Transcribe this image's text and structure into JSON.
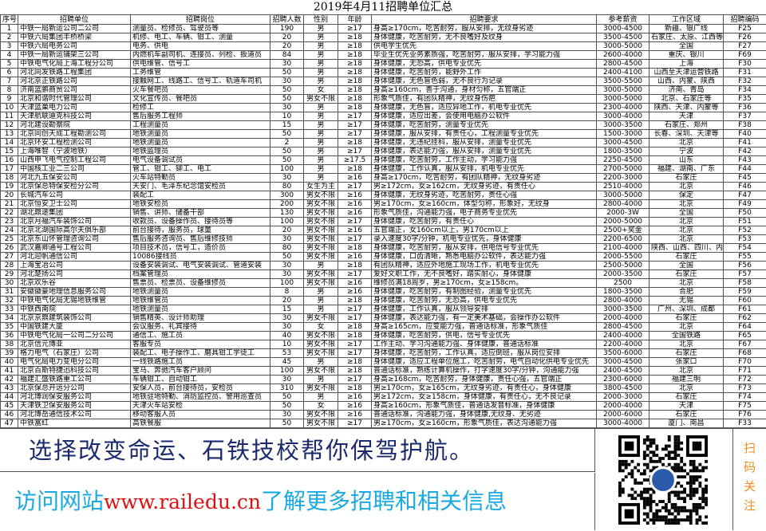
{
  "title": "2019年4月11招聘单位汇总",
  "columns": [
    "序号",
    "招聘单位",
    "招聘岗位",
    "招聘人数",
    "性别",
    "年龄",
    "招聘要求",
    "参考薪资",
    "工作区域",
    "招聘编码"
  ],
  "rows": [
    [
      "1",
      "中铁一局新运公司二公司",
      "测量员、检修员、驾驶员等",
      "190",
      "男",
      "≥17",
      "身高≥170cm，吃苦耐劳，服从安排，无纹身劣迹",
      "3000-4500",
      "新疆、银广线",
      "F25"
    ],
    [
      "2",
      "中铁六局集团丰桥桥梁",
      "机修、电工、车辆、钳工、测量",
      "20",
      "男",
      "≥18",
      "身体健康，吃苦耐劳，无不良嗜好及纹身",
      "3500-4500",
      "石家庄、太原、江西等",
      "F26"
    ],
    [
      "3",
      "中铁六局电务公司",
      "电务、供电",
      "20",
      "男",
      "≥18",
      "供电学生优先",
      "3000-5000",
      "全国",
      "F27"
    ],
    [
      "4",
      "中铁一局新运铺架三公司",
      "内燃机车副司机、连接员、列检、扳道员",
      "84",
      "男",
      "≥18",
      "毕业生优先业务素质强，吃苦耐劳，服从安排，学习能力强",
      "2600-4000",
      "重庆、银川",
      "F69"
    ],
    [
      "5",
      "中铁电气化局上海工程分公司",
      "供电维管、信号工",
      "30",
      "男",
      "≥18",
      "身体健康，无恐高，供电专业优先",
      "2800-4500",
      "上海",
      "F30"
    ],
    [
      "6",
      "河北同发铁路工程集团",
      "工务维管",
      "50",
      "男",
      "≥18",
      "身体健康，吃苦耐劳，能野外工作",
      "2400-4100",
      "山西至天津运营铁路",
      "F31"
    ],
    [
      "7",
      "河北京正铁路公司",
      "接触网工、线路工、信号工、轨道车司机",
      "30",
      "男",
      "≥18",
      "身体健康，无色盲色弱，无不良行为记录",
      "3500-5500",
      "山西、内蒙、陕西",
      "F32"
    ],
    [
      "8",
      "济南蓝鹏商贸公司",
      "火车餐吧员",
      "50",
      "女",
      "≥18",
      "身高≥160cm，善于沟通，身材匀称，五官端正",
      "3000-5000",
      "济南、青岛",
      "F34"
    ],
    [
      "9",
      "北京和谐时代管理公司",
      "文化宣传员、餐吧员",
      "50",
      "男女不限",
      "≥18",
      "形象气质佳，有团队精神，无纹身伤疤",
      "3000-5000",
      "北京、石家庄等",
      "F35"
    ],
    [
      "10",
      "天津蓝巢电力公司",
      "检修工",
      "30",
      "男",
      "≥18",
      "身体健康，无色盲，适应异地工作，机电专业优先",
      "2300-4000",
      "陕西、天津、内蒙等",
      "F36"
    ],
    [
      "11",
      "天津航联迪克科技公司",
      "售后服务工程师",
      "10",
      "男",
      "≥17",
      "身体健康，适应出差，会使用电脑办公软件",
      "3000-4000",
      "天津",
      "F37"
    ],
    [
      "12",
      "河北建设勘察院",
      "工程测量员",
      "15",
      "男",
      "≥17",
      "身体健康，吃苦耐劳，测量专业优先",
      "3000-3500",
      "石家庄、郑州",
      "F38"
    ],
    [
      "13",
      "北京同创天成工程勘测公司",
      "地铁测量员",
      "50",
      "男",
      "≥17",
      "身体健康，服从安排，有责任心，工程测量专业优先",
      "1500-3000",
      "长春、深圳、天津等",
      "F40"
    ],
    [
      "14",
      "北京环安工程检测公司",
      "地铁测量员",
      "2",
      "男",
      "≥18",
      "身体健康，无违纪挂科，服从安排，测量专业优先",
      "3000-4500",
      "北京",
      "F41"
    ],
    [
      "15",
      "上海唯智（宁波地铁）",
      "地铁监理员",
      "50",
      "男",
      "≥17",
      "身体健康，表达能力强，服从安排，测量专业优先",
      "1800-3500",
      "宁波",
      "F42"
    ],
    [
      "16",
      "山西申飞电气控制工程公司",
      "电气设备调试员",
      "50",
      "男",
      "≥17.5",
      "身体健康，吃苦耐劳，工作主动，学习能力强",
      "2250-4500",
      "山东",
      "F43"
    ],
    [
      "17",
      "中国核工业二三公司",
      "管工、钳工、铆工、电工",
      "100",
      "男",
      "≥18",
      "身体健康，工作认真，服从安排，机电专业优先",
      "2700-5000",
      "福建、湖南、广东",
      "F44"
    ],
    [
      "18",
      "河北九五保安公司",
      "火车站特勤员",
      "30",
      "男",
      "≥16",
      "身高≥170cm，吃苦耐劳，有团队精神，无纹身劣迹",
      "2200-3000",
      "石家庄",
      "F45"
    ],
    [
      "19",
      "北京保总特保安检分公司",
      "天安门、毛泽东纪念馆安检员",
      "80",
      "女生为主",
      "≥17",
      "男≥172cm，女≥162cm，无纹身劣迹，有责任心",
      "2510-4000",
      "北京",
      "F46"
    ],
    [
      "20",
      "长城汽车公司",
      "装配工",
      "300",
      "男女不限",
      "≥16",
      "身体健康，无纹身劣迹，吃苦耐劳，责任心强",
      "3000-5000",
      "保定",
      "F47"
    ],
    [
      "21",
      "北京恒安卫士公司",
      "地铁安检员",
      "200",
      "男女不限",
      "≥16",
      "男≥170cm，女≥160cm，体型匀称，形象好，无纹身",
      "2800-4000",
      "北京",
      "F49"
    ],
    [
      "22",
      "湖北鼎途集团",
      "销售、讲师、储备干部",
      "130",
      "男女不限",
      "≥16",
      "形象气质佳，沟通能力强，电子商务专业优先",
      "2000-3W",
      "全国",
      "F50"
    ],
    [
      "23",
      "北京月福汽车装饰公司",
      "收款员、设备操作员、接待员等",
      "100",
      "男女不限",
      "≥17",
      "身体健康，吃苦耐劳，有责任心",
      "2000-5000",
      "北京",
      "F51"
    ],
    [
      "24",
      "北京北湖国际高尔夫俱乐部",
      "前台接待，服务员，球童",
      "20",
      "男女不限",
      "≥16",
      "五官端正，女160cm以上，男170cm以上",
      "2500+奖金",
      "北京",
      "F52"
    ],
    [
      "25",
      "北京东山怀管理咨询公司",
      "售后服务咨询员、售后维修技师",
      "30",
      "男女不限",
      "≥17",
      "录入速度30字/分钟，机电专业优先，身体健康",
      "2200-6500",
      "北京",
      "F53"
    ],
    [
      "26",
      "武汉嘉卿通号工程公司",
      "项目技术员，信号工，造价员",
      "80",
      "男女不限",
      "≥18",
      "身体健康，吃苦耐劳，服从安排，供电信号专业优先",
      "2100-4000",
      "陕西、山西、四川、内蒙",
      "F54"
    ],
    [
      "27",
      "河北迎帆通信公司",
      "10086接线员",
      "50",
      "男女不限",
      "≥16",
      "身体健康，口齿清晰，熟悉电脑办公软件，表达能力强",
      "2000-5500",
      "石家庄",
      "F55"
    ],
    [
      "28",
      "上海宝冶公司",
      "设备安装调试、电气安装调试、管道安装",
      "30",
      "男",
      "≥18",
      "有团队精神，适应外地施工现场工作，机电专业优先",
      "2500-5000",
      "全国",
      "F56"
    ],
    [
      "29",
      "河北楚扬公司",
      "档案管理员",
      "30",
      "男女不限",
      "≥17",
      "爱好文职工作，无不良嗜好，踏实耐心，身体健康",
      "2000-3500",
      "石家庄",
      "F57"
    ],
    [
      "30",
      "北京欢乐谷",
      "售票员、检票员、设备维修员",
      "100",
      "男女不限",
      "≥16",
      "维修员满18周岁，男≥170cm，女≥158cm。",
      "2500",
      "北京",
      "F58"
    ],
    [
      "31",
      "安徽徽豪地理信息服务公司",
      "地铁测量员",
      "8",
      "男",
      "≥16",
      "身体健康，吃苦耐劳，有制图经验，测量专业优先",
      "1800-3500",
      "合肥",
      "F59"
    ],
    [
      "32",
      "中铁电气化局无锡地铁维管",
      "地铁维管员",
      "20",
      "男",
      "≥18",
      "身体健康，吃苦耐劳，无恐高，供电专业优先",
      "2800-4000",
      "无锡",
      "F60"
    ],
    [
      "33",
      "中铁西南院",
      "地铁测量员",
      "15",
      "男",
      "≥17",
      "身体健康，工作认真，服从领导安排",
      "3000-3500",
      "广州、深圳、成都",
      "F61"
    ],
    [
      "34",
      "北京京鼎建筑装饰公司",
      "销售精英、设计师助理",
      "30",
      "男女不限",
      "≥17",
      "身体健康，表达能力强，有一定美术基础，会操作办公软件",
      "2000-4000",
      "石家庄",
      "F62"
    ],
    [
      "35",
      "中国铁建大厦",
      "会议服务、礼宾接待",
      "30",
      "女",
      "≥18",
      "身高≥165cm，应变能力强，普通话标准，形象气质佳",
      "2800-4500",
      "北京",
      "F64"
    ],
    [
      "36",
      "中铁电气化局一公司二分公司",
      "通信工、施工员",
      "40",
      "男女不限",
      "≥18",
      "身体健康，吃苦耐劳，供电，信号专业优先",
      "2400-4000",
      "全国铁路",
      "F65"
    ],
    [
      "38",
      "北京信元博亚",
      "客服专员",
      "10",
      "男女不限",
      "≥17",
      "工作主动、学习沟通能力强、身体健康，普通话标准",
      "2200-4000",
      "北京",
      "F67"
    ],
    [
      "39",
      "格力电气（石家庄）公司",
      "装配工、电子操作工、磨具钳工学徒工",
      "53",
      "男女不限",
      "≥17",
      "身体健康，吃苦耐劳，工作认真，适应倒班，服从岗位安排",
      "3500-6000",
      "石家庄",
      "F68"
    ],
    [
      "40",
      "电气化局电力变电分公司",
      "一线铁路施工员",
      "45",
      "男",
      "≥18",
      "身体健康，适应工程单位施工，吃苦耐劳，电气自动化供电专业优先",
      "3000-4500",
      "张家口",
      "F70"
    ],
    [
      "41",
      "北京百斯特捷迅科技公司",
      "宝马、奔驰汽车客户顾问",
      "100",
      "男女不限",
      "≥18",
      "普通话标准，熟练计算机操作，打字速度30字/分钟，沟通能力强",
      "2400-4500",
      "北京",
      "F71"
    ],
    [
      "42",
      "福建汇盛铁路重工公司",
      "车辆钳工、自动钳工",
      "30",
      "男",
      "≥17",
      "身高≥168cm，吃苦耐劳，身体健康，责任心强，五官端正",
      "2300-6000",
      "福建三明",
      "F72"
    ],
    [
      "43",
      "北京保总开远分公司",
      "安保人员，前台接待员，安检员",
      "310",
      "男女不限",
      "≥18",
      "男≥170cm，女≥165cm，无纹身劣迹，有责任心，身体健康",
      "3800-4500",
      "北京",
      "F73"
    ],
    [
      "44",
      "河北博润保安服务公司",
      "地铁驻地特勤、消防监控员、警用巡查员",
      "50",
      "男",
      "≥16",
      "男≥172cm，女≥158cm，身体健康，有责任心，无不良记录",
      "2000-3000",
      "石家庄",
      "F74"
    ],
    [
      "45",
      "天津铁卫保安服务公司",
      "天津火车站安检",
      "50",
      "女",
      "≥16",
      "身高≥160cm，形象气质佳，普通话发音标准，身体健康",
      "2000-4000",
      "天津",
      "F75"
    ],
    [
      "46",
      "河北博岳通信技术公司",
      "移动客服人员",
      "30",
      "男女不限",
      "≥16",
      "普通话标准，沟通能力强，身体健康,无纹身、无劣迹",
      "2000-6000",
      "石家庄",
      "F76"
    ],
    [
      "47",
      "中铁富红",
      "高铁餐服",
      "50",
      "男女不限",
      "≥17",
      "男≥170cm，女≥160cm，形象气质佳，表达沟通能力强",
      "3000-4000",
      "厦门、南昌",
      "F33"
    ]
  ],
  "banner": {
    "slogan": "选择改变命运、石铁技校帮你保驾护航。",
    "visit_prefix": "访问网站",
    "url": "www.railedu.cn",
    "visit_suffix": "了解更多招聘和相关信息",
    "qr_icon": "qr-code-icon",
    "follow": [
      "扫",
      "码",
      "关",
      "注"
    ]
  },
  "colors": {
    "slogan": "#1a2a6c",
    "visit": "#1aa9e0",
    "url": "#e01010",
    "follow": "#f08c1a"
  }
}
